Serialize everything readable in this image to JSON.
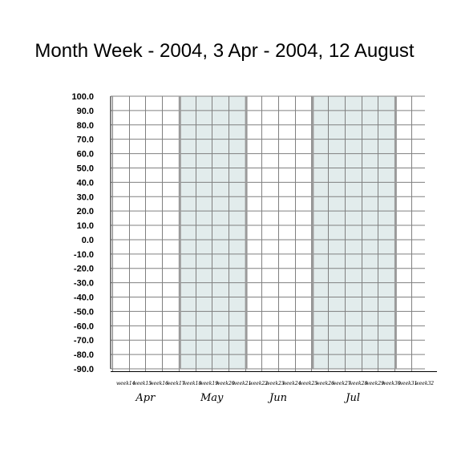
{
  "chart_data": {
    "type": "table",
    "title": "Month Week - 2004, 3 Apr - 2004, 12 August",
    "xlabel": "",
    "ylabel": "",
    "ylim": [
      -90,
      100
    ],
    "ystep": 10,
    "y_ticks": [
      "100.0",
      "90.0",
      "80.0",
      "70.0",
      "60.0",
      "50.0",
      "40.0",
      "30.0",
      "20.0",
      "10.0",
      "0.0",
      "-10.0",
      "-20.0",
      "-30.0",
      "-40.0",
      "-50.0",
      "-60.0",
      "-70.0",
      "-80.0",
      "-90.0"
    ],
    "weeks": [
      "week14",
      "week15",
      "week16",
      "week17",
      "week18",
      "week19",
      "week20",
      "week21",
      "week22",
      "week23",
      "week24",
      "week25",
      "week26",
      "week27",
      "week28",
      "week29",
      "week30",
      "week31",
      "week32"
    ],
    "months": [
      {
        "label": "Apr",
        "start_week": 14,
        "end_week": 17,
        "shaded": false
      },
      {
        "label": "May",
        "start_week": 18,
        "end_week": 21,
        "shaded": true
      },
      {
        "label": "Jun",
        "start_week": 22,
        "end_week": 25,
        "shaded": false
      },
      {
        "label": "Jul",
        "start_week": 26,
        "end_week": 30,
        "shaded": true
      }
    ],
    "grid": true,
    "series": []
  },
  "colors": {
    "background": "#ffffff",
    "grid": "#808080",
    "shade": "#e2ecec",
    "month_separator": "#9a9a9a",
    "axis": "#000000"
  }
}
